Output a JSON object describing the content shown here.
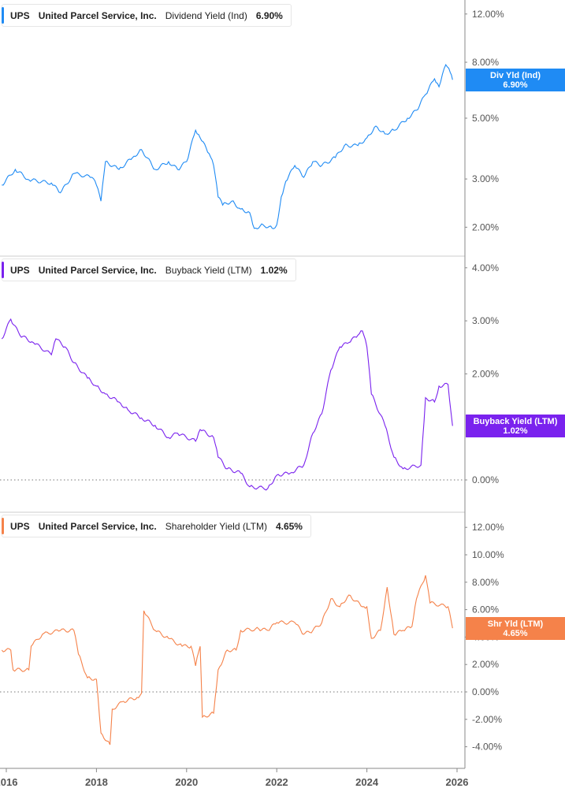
{
  "colors": {
    "dividend": "#1f8bf4",
    "buyback": "#7a22ee",
    "shareholder": "#f5824a"
  },
  "x_axis": {
    "ticks": [
      "2016",
      "2018",
      "2020",
      "2022",
      "2024",
      "2026"
    ],
    "tick_years": [
      2016,
      2018,
      2020,
      2022,
      2024,
      2026
    ],
    "range": [
      2015.85,
      2026.1
    ]
  },
  "chart_data": [
    {
      "type": "line",
      "ticker": "UPS",
      "company": "United Parcel Service, Inc.",
      "metric": "Dividend Yield (Ind)",
      "value": "6.90%",
      "tag_label": "Div Yld (Ind)",
      "tag_value": "6.90%",
      "scale": "log",
      "y_ticks": [
        "12.00%",
        "8.00%",
        "5.00%",
        "3.00%",
        "2.00%"
      ],
      "y_tick_values": [
        12,
        8,
        5,
        3,
        2
      ],
      "x": [
        2015.9,
        2016.2,
        2016.5,
        2017.0,
        2017.2,
        2017.5,
        2017.9,
        2018.0,
        2018.1,
        2018.2,
        2018.5,
        2018.8,
        2019.0,
        2019.3,
        2019.6,
        2019.8,
        2020.0,
        2020.2,
        2020.3,
        2020.5,
        2020.6,
        2020.7,
        2020.8,
        2021.0,
        2021.2,
        2021.4,
        2021.5,
        2021.7,
        2021.9,
        2022.0,
        2022.1,
        2022.2,
        2022.4,
        2022.6,
        2022.8,
        2023.0,
        2023.3,
        2023.5,
        2023.8,
        2024.0,
        2024.2,
        2024.4,
        2024.6,
        2024.9,
        2025.1,
        2025.3,
        2025.5,
        2025.6,
        2025.75,
        2025.85,
        2025.9
      ],
      "y": [
        2.85,
        3.25,
        2.98,
        2.9,
        2.67,
        3.14,
        3.04,
        2.85,
        2.49,
        3.47,
        3.25,
        3.59,
        3.84,
        3.25,
        3.47,
        3.25,
        3.47,
        4.52,
        4.24,
        3.71,
        3.36,
        2.58,
        2.41,
        2.49,
        2.33,
        2.26,
        1.98,
        2.04,
        1.98,
        2.04,
        2.58,
        2.94,
        3.36,
        3.04,
        3.47,
        3.36,
        3.59,
        3.97,
        3.97,
        4.24,
        4.68,
        4.38,
        4.52,
        5.0,
        5.34,
        6.1,
        6.96,
        6.51,
        7.84,
        7.34,
        6.9
      ]
    },
    {
      "type": "line",
      "ticker": "UPS",
      "company": "United Parcel Service, Inc.",
      "metric": "Buyback Yield (LTM)",
      "value": "1.02%",
      "tag_label": "Buyback Yield (LTM)",
      "tag_value": "1.02%",
      "scale": "linear",
      "y_ticks": [
        "4.00%",
        "3.00%",
        "2.00%",
        "0.00%"
      ],
      "y_tick_values": [
        4,
        3,
        2,
        0
      ],
      "x": [
        2015.9,
        2016.1,
        2016.3,
        2016.6,
        2017.0,
        2017.1,
        2017.3,
        2017.5,
        2017.8,
        2018.0,
        2018.2,
        2018.5,
        2018.7,
        2019.0,
        2019.3,
        2019.6,
        2019.8,
        2020.2,
        2020.3,
        2020.6,
        2020.7,
        2020.9,
        2021.2,
        2021.4,
        2021.8,
        2022.0,
        2022.3,
        2022.6,
        2022.8,
        2023.0,
        2023.2,
        2023.4,
        2023.6,
        2023.8,
        2023.9,
        2024.0,
        2024.1,
        2024.4,
        2024.6,
        2024.8,
        2025.2,
        2025.3,
        2025.5,
        2025.6,
        2025.8,
        2025.9
      ],
      "y": [
        2.66,
        3.03,
        2.73,
        2.59,
        2.36,
        2.66,
        2.51,
        2.21,
        1.92,
        1.77,
        1.62,
        1.47,
        1.32,
        1.17,
        1.03,
        0.8,
        0.88,
        0.73,
        0.95,
        0.8,
        0.43,
        0.21,
        0.13,
        -0.13,
        -0.16,
        0.09,
        0.13,
        0.28,
        0.88,
        1.25,
        2.07,
        2.51,
        2.59,
        2.73,
        2.81,
        2.51,
        1.62,
        1.03,
        0.43,
        0.21,
        0.28,
        1.55,
        1.47,
        1.77,
        1.8,
        1.02
      ]
    },
    {
      "type": "line",
      "ticker": "UPS",
      "company": "United Parcel Service, Inc.",
      "metric": "Shareholder Yield (LTM)",
      "value": "4.65%",
      "tag_label": "Shr Yld (LTM)",
      "tag_value": "4.65%",
      "scale": "linear",
      "y_ticks": [
        "12.00%",
        "10.00%",
        "8.00%",
        "6.00%",
        "4.00%",
        "2.00%",
        "0.00%",
        "-2.00%",
        "-4.00%"
      ],
      "y_tick_values": [
        12,
        10,
        8,
        6,
        4,
        2,
        0,
        -2,
        -4
      ],
      "x": [
        2015.9,
        2016.1,
        2016.15,
        2016.5,
        2016.55,
        2016.8,
        2017.2,
        2017.5,
        2017.6,
        2017.8,
        2018.0,
        2018.1,
        2018.3,
        2018.35,
        2018.6,
        2018.9,
        2019.0,
        2019.05,
        2019.3,
        2019.6,
        2019.9,
        2020.1,
        2020.2,
        2020.3,
        2020.35,
        2020.6,
        2020.7,
        2020.9,
        2021.1,
        2021.2,
        2021.6,
        2021.8,
        2022.0,
        2022.4,
        2022.6,
        2022.8,
        2023.0,
        2023.2,
        2023.4,
        2023.6,
        2023.9,
        2024.0,
        2024.1,
        2024.3,
        2024.45,
        2024.6,
        2024.8,
        2025.0,
        2025.1,
        2025.3,
        2025.4,
        2025.8,
        2025.9
      ],
      "y": [
        3.05,
        3.05,
        1.61,
        1.61,
        3.33,
        4.2,
        4.48,
        4.48,
        2.76,
        1.03,
        0.92,
        -2.99,
        -3.85,
        -1.26,
        -0.69,
        -0.4,
        -0.1,
        5.92,
        4.48,
        3.91,
        3.33,
        3.33,
        1.9,
        3.33,
        -1.84,
        -1.55,
        1.61,
        3.05,
        3.05,
        4.48,
        4.6,
        4.48,
        5.06,
        5.06,
        4.2,
        4.48,
        5.06,
        6.78,
        6.21,
        7.07,
        6.21,
        6.21,
        3.91,
        4.48,
        7.64,
        4.2,
        4.48,
        4.77,
        6.78,
        8.5,
        6.49,
        6.21,
        4.65
      ]
    }
  ]
}
